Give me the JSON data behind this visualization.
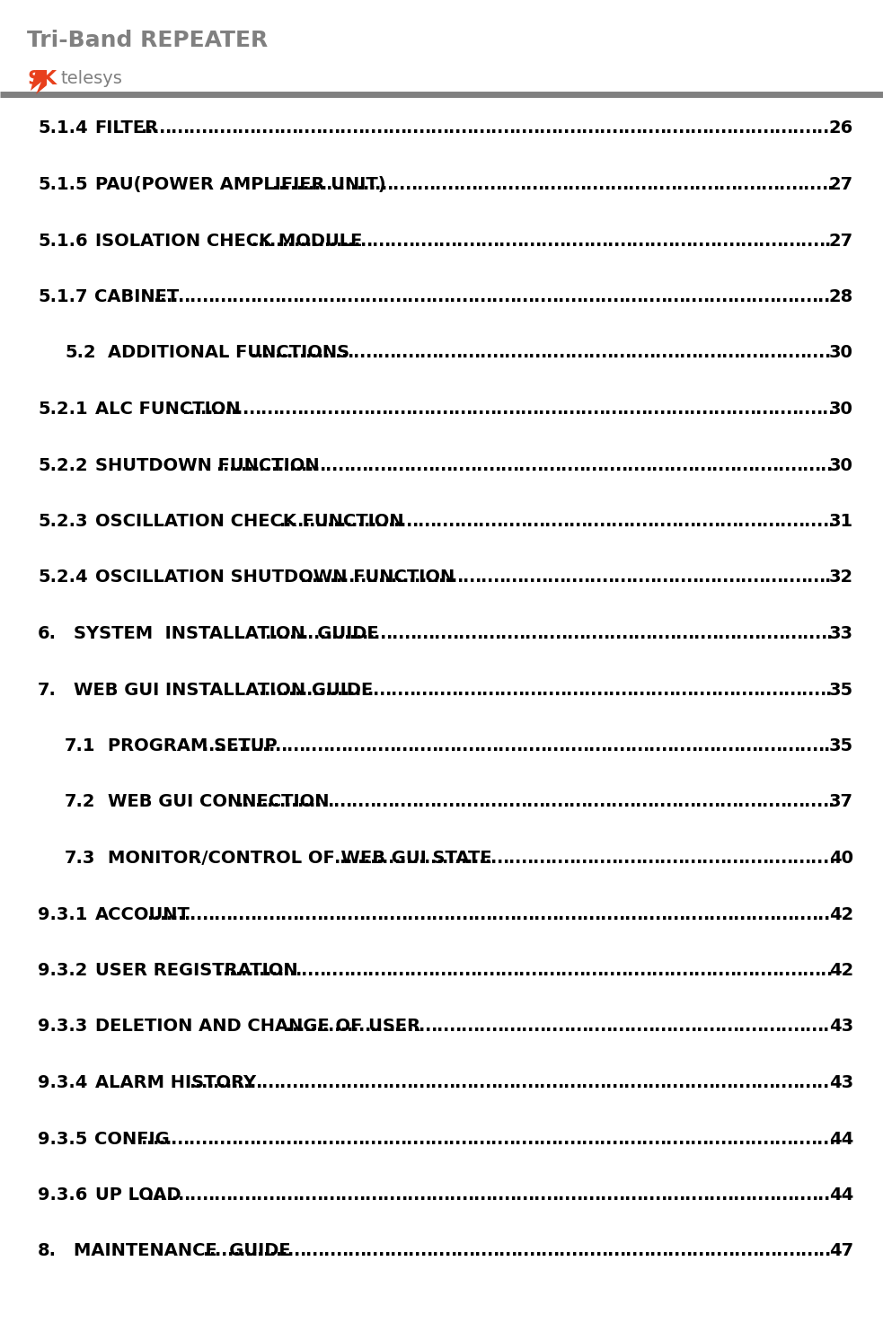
{
  "title": "Tri-Band REPEATER",
  "title_color": "#808080",
  "title_bold": true,
  "title_fontsize": 18,
  "bg_color": "#ffffff",
  "header_line_color": "#808080",
  "toc_entries": [
    {
      "num": "5.1.4",
      "indent": 0,
      "text": "FILTER",
      "page": "26"
    },
    {
      "num": "5.1.5",
      "indent": 0,
      "text": "PAU(POWER AMPLIFIER UNIT)",
      "page": "27"
    },
    {
      "num": "5.1.6",
      "indent": 0,
      "text": "ISOLATION CHECK MODULE",
      "page": "27"
    },
    {
      "num": "5.1.7",
      "indent": 0,
      "text": "CABINET",
      "page": "28"
    },
    {
      "num": "5.2",
      "indent": 1,
      "text": "ADDITIONAL FUNCTIONS",
      "page": "30"
    },
    {
      "num": "5.2.1",
      "indent": 0,
      "text": "ALC FUNCTION",
      "page": "30"
    },
    {
      "num": "5.2.2",
      "indent": 0,
      "text": "SHUTDOWN FUNCTION",
      "page": "30"
    },
    {
      "num": "5.2.3",
      "indent": 0,
      "text": "OSCILLATION CHECK FUNCTION",
      "page": "31"
    },
    {
      "num": "5.2.4",
      "indent": 0,
      "text": "OSCILLATION SHUTDOWN FUNCTION",
      "page": "32"
    },
    {
      "num": "6.",
      "indent": 0,
      "text": "SYSTEM  INSTALLATION  GUIDE",
      "page": "33"
    },
    {
      "num": "7.",
      "indent": 0,
      "text": "WEB GUI INSTALLATION GUIDE",
      "page": "35"
    },
    {
      "num": "7.1",
      "indent": 1,
      "text": "PROGRAM SETUP",
      "page": "35"
    },
    {
      "num": "7.2",
      "indent": 1,
      "text": "WEB GUI CONNECTION",
      "page": "37"
    },
    {
      "num": "7.3",
      "indent": 1,
      "text": "MONITOR/CONTROL OF WEB GUI STATE",
      "page": "40"
    },
    {
      "num": "9.3.1",
      "indent": 0,
      "text": "ACCOUNT",
      "page": "42"
    },
    {
      "num": "9.3.2",
      "indent": 0,
      "text": "USER REGISTRATION",
      "page": "42"
    },
    {
      "num": "9.3.3",
      "indent": 0,
      "text": "DELETION AND CHANGE OF USER",
      "page": "43"
    },
    {
      "num": "9.3.4",
      "indent": 0,
      "text": "ALARM HISTORY",
      "page": "43"
    },
    {
      "num": "9.3.5",
      "indent": 0,
      "text": "CONFIG",
      "page": "44"
    },
    {
      "num": "9.3.6",
      "indent": 0,
      "text": "UP LOAD",
      "page": "44"
    },
    {
      "num": "8.",
      "indent": 0,
      "text": "MAINTENANCE  GUIDE",
      "page": "47"
    }
  ],
  "toc_fontsize": 14,
  "toc_color": "#000000",
  "dot_color": "#000000",
  "logo_sk_color": "#e8401c",
  "logo_text_color": "#808080"
}
